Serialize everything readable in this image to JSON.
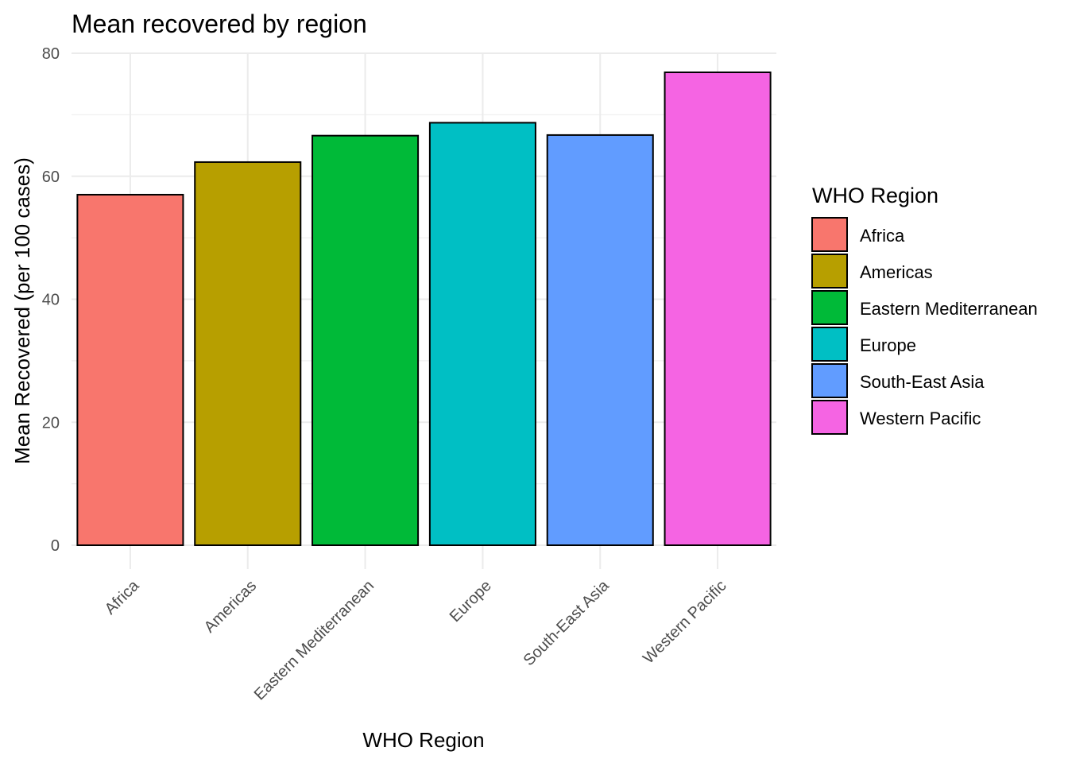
{
  "chart_data": {
    "type": "bar",
    "title": "Mean recovered by region",
    "xlabel": "WHO Region",
    "ylabel": "Mean Recovered (per 100 cases)",
    "categories": [
      "Africa",
      "Americas",
      "Eastern Mediterranean",
      "Europe",
      "South-East Asia",
      "Western Pacific"
    ],
    "values": [
      57.0,
      62.3,
      66.6,
      68.7,
      66.7,
      76.9
    ],
    "colors": [
      "#F8766D",
      "#B79F00",
      "#00BA38",
      "#00BFC4",
      "#619CFF",
      "#F564E3"
    ],
    "ylim": [
      0,
      80
    ],
    "yticks": [
      0,
      20,
      40,
      60,
      80
    ],
    "grid": true,
    "legend": {
      "title": "WHO Region",
      "position": "right",
      "entries": [
        "Africa",
        "Americas",
        "Eastern Mediterranean",
        "Europe",
        "South-East Asia",
        "Western Pacific"
      ]
    }
  }
}
